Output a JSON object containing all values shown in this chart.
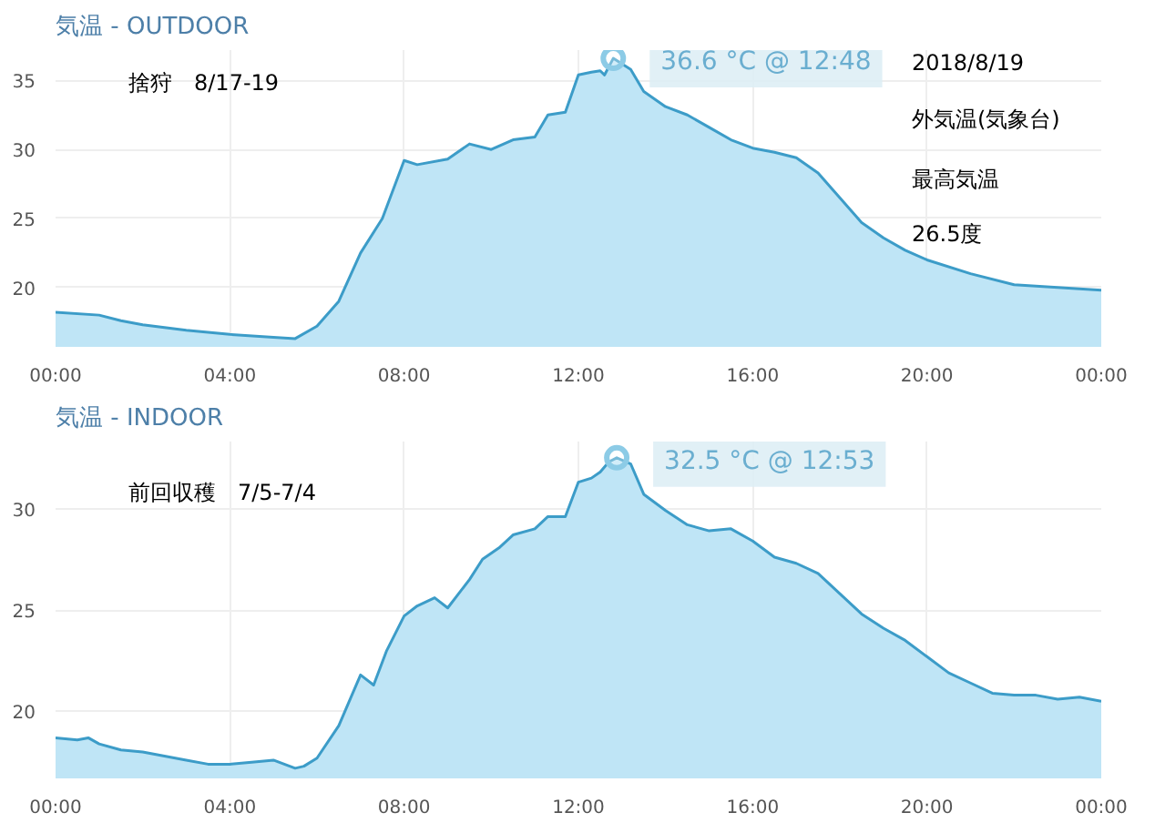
{
  "chart_data": [
    {
      "type": "area",
      "title": "気温 -  OUTDOOR",
      "xlim": [
        0,
        24
      ],
      "ylim": [
        15.7,
        37.2
      ],
      "xticks": [
        {
          "value": 0,
          "label": "00:00"
        },
        {
          "value": 4,
          "label": "04:00"
        },
        {
          "value": 8,
          "label": "08:00"
        },
        {
          "value": 12,
          "label": "12:00"
        },
        {
          "value": 16,
          "label": "16:00"
        },
        {
          "value": 20,
          "label": "20:00"
        },
        {
          "value": 24,
          "label": "00:00"
        }
      ],
      "yticks": [
        20,
        25,
        30,
        35
      ],
      "grid": true,
      "series": [
        {
          "color": "#3c9cc8",
          "x": [
            0,
            1,
            1.5,
            2,
            3,
            4,
            5,
            5.5,
            6,
            6.5,
            7,
            7.5,
            8,
            8.3,
            9,
            9.5,
            10,
            10.5,
            11,
            11.3,
            11.7,
            12,
            12.3,
            12.5,
            12.6,
            12.8,
            13.2,
            13.5,
            14,
            14.5,
            15,
            15.5,
            16,
            16.5,
            17,
            17.5,
            18,
            18.5,
            19,
            19.5,
            20,
            21,
            22,
            23,
            24
          ],
          "values": [
            18.2,
            18.0,
            17.6,
            17.3,
            16.9,
            16.6,
            16.4,
            16.3,
            17.2,
            19.0,
            22.5,
            25.0,
            29.2,
            28.9,
            29.3,
            30.4,
            30.0,
            30.7,
            30.9,
            32.5,
            32.7,
            35.4,
            35.6,
            35.7,
            35.4,
            36.6,
            35.8,
            34.2,
            33.1,
            32.5,
            31.6,
            30.7,
            30.1,
            29.8,
            29.4,
            28.3,
            26.5,
            24.7,
            23.6,
            22.7,
            22.0,
            21.0,
            20.2,
            20.0,
            19.8
          ]
        }
      ],
      "annotations": [
        {
          "text": "36.6 °C @ 12:48",
          "x": 12.8,
          "y": 36.6
        },
        "捨狩　8/17-19",
        "2018/8/19",
        "外気温(気象台)",
        "最高気温",
        "26.5度"
      ]
    },
    {
      "type": "area",
      "title": "気温 -  INDOOR",
      "xlim": [
        0,
        24
      ],
      "ylim": [
        16.7,
        33.3
      ],
      "xticks": [
        {
          "value": 0,
          "label": "00:00"
        },
        {
          "value": 4,
          "label": "04:00"
        },
        {
          "value": 8,
          "label": "08:00"
        },
        {
          "value": 12,
          "label": "12:00"
        },
        {
          "value": 16,
          "label": "16:00"
        },
        {
          "value": 20,
          "label": "20:00"
        },
        {
          "value": 24,
          "label": "00:00"
        }
      ],
      "yticks": [
        20,
        25,
        30
      ],
      "grid": true,
      "series": [
        {
          "color": "#3c9cc8",
          "x": [
            0,
            0.5,
            0.75,
            1,
            1.5,
            2,
            2.5,
            3,
            3.5,
            4,
            4.5,
            5,
            5.5,
            5.7,
            6,
            6.5,
            7,
            7.3,
            7.6,
            8,
            8.3,
            8.7,
            9,
            9.5,
            9.8,
            10.2,
            10.5,
            11,
            11.3,
            11.7,
            12,
            12.3,
            12.5,
            12.7,
            12.88,
            13.2,
            13.5,
            14,
            14.5,
            15,
            15.5,
            16,
            16.5,
            17,
            17.5,
            18,
            18.5,
            19,
            19.5,
            20,
            20.5,
            21,
            21.5,
            22,
            22.5,
            23,
            23.5,
            24
          ],
          "values": [
            18.7,
            18.6,
            18.7,
            18.4,
            18.1,
            18.0,
            17.8,
            17.6,
            17.4,
            17.4,
            17.5,
            17.6,
            17.2,
            17.3,
            17.7,
            19.3,
            21.8,
            21.3,
            23.0,
            24.7,
            25.2,
            25.6,
            25.1,
            26.5,
            27.5,
            28.1,
            28.7,
            29.0,
            29.6,
            29.6,
            31.3,
            31.5,
            31.8,
            32.3,
            32.5,
            32.2,
            30.7,
            29.9,
            29.2,
            28.9,
            29.0,
            28.4,
            27.6,
            27.3,
            26.8,
            25.8,
            24.8,
            24.1,
            23.5,
            22.7,
            21.9,
            21.4,
            20.9,
            20.8,
            20.8,
            20.6,
            20.7,
            20.5
          ]
        }
      ],
      "annotations": [
        {
          "text": "32.5 °C @ 12:53",
          "x": 12.88,
          "y": 32.5
        },
        "前回収穫　7/5-7/4"
      ]
    }
  ]
}
